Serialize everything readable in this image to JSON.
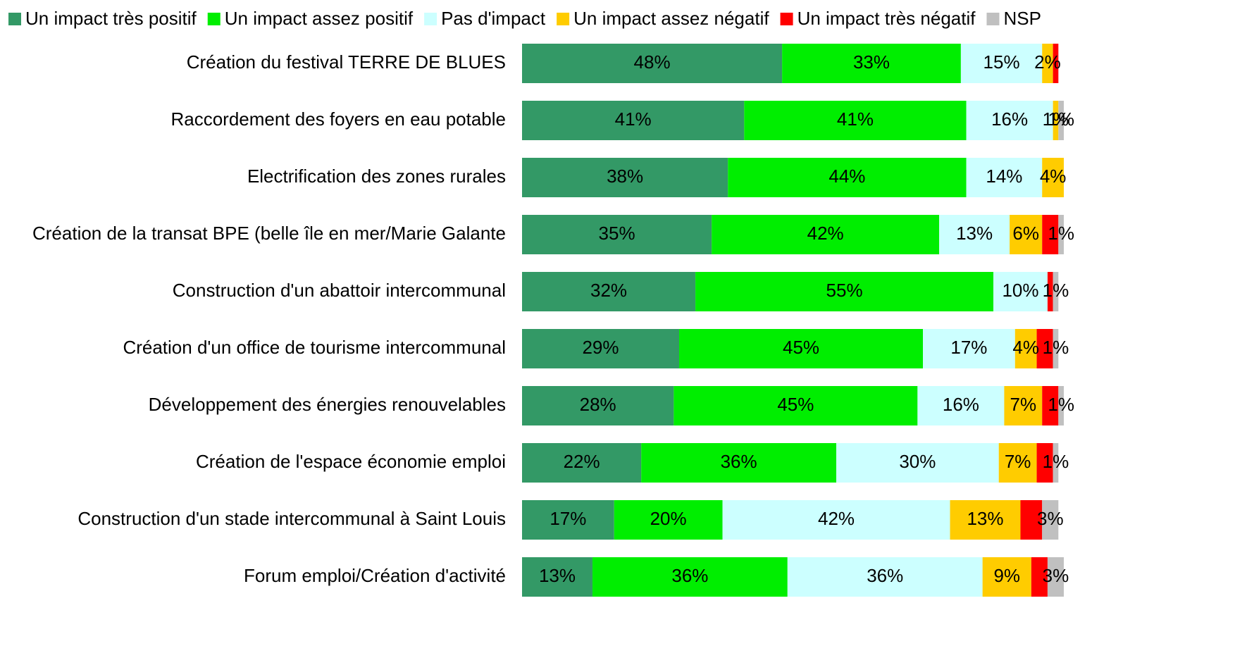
{
  "chart_data": {
    "type": "stacked-bar-horizontal",
    "categories": [
      "Création du festival TERRE DE BLUES",
      "Raccordement des foyers en eau potable",
      "Electrification des zones rurales",
      "Création de la transat BPE (belle île en mer/Marie Galante",
      "Construction d'un abattoir intercommunal",
      "Création d'un office de tourisme intercommunal",
      "Développement des énergies renouvelables",
      "Création de l'espace économie emploi",
      "Construction d'un stade intercommunal à Saint Louis",
      "Forum emploi/Création d'activité"
    ],
    "xlim": [
      0,
      100
    ],
    "series": [
      {
        "name": "Un impact très positif",
        "color": "#339966",
        "values": [
          48,
          41,
          38,
          35,
          32,
          29,
          28,
          22,
          17,
          13
        ],
        "value_labels": [
          "48%",
          "41%",
          "38%",
          "35%",
          "32%",
          "29%",
          "28%",
          "22%",
          "17%",
          "13%"
        ]
      },
      {
        "name": "Un impact assez positif",
        "color": "#00ee00",
        "values": [
          33,
          41,
          44,
          42,
          55,
          45,
          45,
          36,
          20,
          36
        ],
        "value_labels": [
          "33%",
          "41%",
          "44%",
          "42%",
          "55%",
          "45%",
          "45%",
          "36%",
          "20%",
          "36%"
        ]
      },
      {
        "name": "Pas d'impact",
        "color": "#ccffff",
        "values": [
          15,
          16,
          14,
          13,
          10,
          17,
          16,
          30,
          42,
          36
        ],
        "value_labels": [
          "15%",
          "16%",
          "14%",
          "13%",
          "10%",
          "17%",
          "16%",
          "30%",
          "42%",
          "36%"
        ]
      },
      {
        "name": "Un impact assez négatif",
        "color": "#ffcc00",
        "values": [
          2,
          1,
          4,
          6,
          0,
          4,
          7,
          7,
          13,
          9
        ],
        "value_labels": [
          "2%",
          "1%",
          "4%",
          "6%",
          null,
          "4%",
          "7%",
          "7%",
          "13%",
          "9%"
        ]
      },
      {
        "name": "Un impact très négatif",
        "color": "#ff0000",
        "values": [
          1,
          0,
          0,
          3,
          1,
          3,
          3,
          3,
          4,
          3
        ],
        "value_labels": [
          null,
          null,
          null,
          null,
          null,
          null,
          null,
          null,
          null,
          null
        ]
      },
      {
        "name": "NSP",
        "color": "#c0c0c0",
        "values": [
          0,
          1,
          0,
          1,
          1,
          1,
          1,
          1,
          3,
          3
        ],
        "value_labels": [
          null,
          "1%",
          null,
          "1%",
          "1%",
          "1%",
          "1%",
          "1%",
          "3%",
          "3%"
        ]
      }
    ]
  }
}
